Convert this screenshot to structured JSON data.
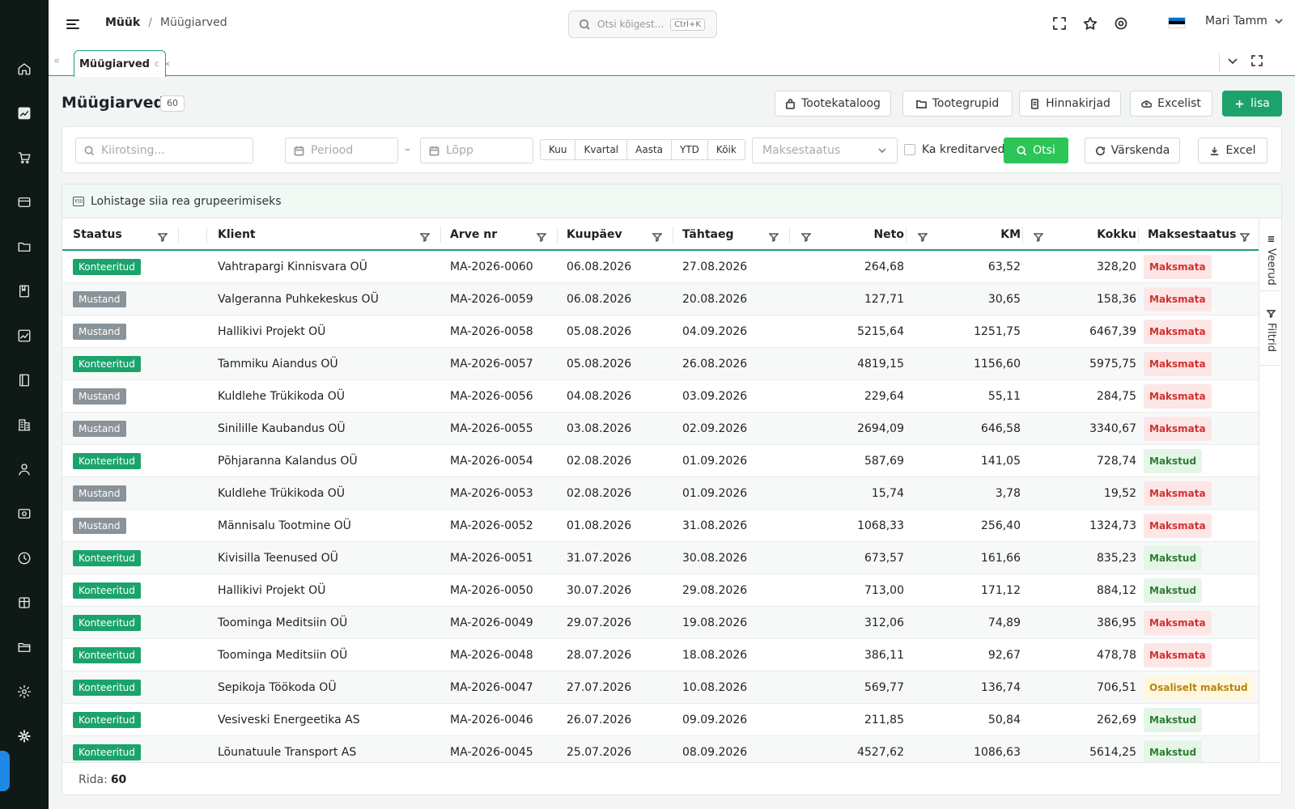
{
  "breadcrumb": {
    "section": "Müük",
    "separator": "/",
    "page": "Müügiarved"
  },
  "search": {
    "placeholder": "Otsi kõigest...",
    "shortcut": "Ctrl+K"
  },
  "user": {
    "name": "Mari Tamm"
  },
  "flag_colors": [
    "#0072ce",
    "#000000",
    "#ffffff"
  ],
  "tab": {
    "label": "Müügiarved",
    "refresh_glyph": "c",
    "close_glyph": "×"
  },
  "page": {
    "title": "Müügiarved",
    "count": "60"
  },
  "actions": {
    "catalog": "Tootekataloog",
    "groups": "Tootegrupid",
    "pricelists": "Hinnakirjad",
    "excel_import": "Excelist",
    "add": "lisa"
  },
  "filters": {
    "quick_search_placeholder": "Kiirotsing...",
    "period_placeholder": "Periood",
    "dash": "–",
    "end_placeholder": "Lõpp",
    "ranges": [
      "Kuu",
      "Kvartal",
      "Aasta",
      "YTD",
      "Kõik"
    ],
    "payment_status_placeholder": "Maksestaatus",
    "credit_label": "Ka kreditarved",
    "search_button": "Otsi",
    "refresh_button": "Värskenda",
    "excel_button": "Excel"
  },
  "grid": {
    "group_hint": "Lohistage siia rea grupeerimiseks",
    "group_icon_text": "YIII",
    "columns": {
      "status": "Staatus",
      "client": "Klient",
      "invoice": "Arve nr",
      "date": "Kuupäev",
      "due": "Tähtaeg",
      "net": "Neto",
      "vat": "KM",
      "total": "Kokku",
      "payment": "Maksestaatus"
    },
    "side_tabs": {
      "columns": "Veerud",
      "filters": "Filtrid"
    },
    "rows": [
      {
        "status": "Konteeritud",
        "client": "Vahtrapargi Kinnisvara OÜ",
        "invoice": "MA-2026-0060",
        "date": "06.08.2026",
        "due": "27.08.2026",
        "net": "264,68",
        "vat": "63,52",
        "total": "328,20",
        "payment": "Maksmata"
      },
      {
        "status": "Mustand",
        "client": "Valgeranna Puhkekeskus OÜ",
        "invoice": "MA-2026-0059",
        "date": "06.08.2026",
        "due": "20.08.2026",
        "net": "127,71",
        "vat": "30,65",
        "total": "158,36",
        "payment": "Maksmata"
      },
      {
        "status": "Mustand",
        "client": "Hallikivi Projekt OÜ",
        "invoice": "MA-2026-0058",
        "date": "05.08.2026",
        "due": "04.09.2026",
        "net": "5215,64",
        "vat": "1251,75",
        "total": "6467,39",
        "payment": "Maksmata"
      },
      {
        "status": "Konteeritud",
        "client": "Tammiku Aiandus OÜ",
        "invoice": "MA-2026-0057",
        "date": "05.08.2026",
        "due": "26.08.2026",
        "net": "4819,15",
        "vat": "1156,60",
        "total": "5975,75",
        "payment": "Maksmata"
      },
      {
        "status": "Mustand",
        "client": "Kuldlehe Trükikoda OÜ",
        "invoice": "MA-2026-0056",
        "date": "04.08.2026",
        "due": "03.09.2026",
        "net": "229,64",
        "vat": "55,11",
        "total": "284,75",
        "payment": "Maksmata"
      },
      {
        "status": "Mustand",
        "client": "Sinilille Kaubandus OÜ",
        "invoice": "MA-2026-0055",
        "date": "03.08.2026",
        "due": "02.09.2026",
        "net": "2694,09",
        "vat": "646,58",
        "total": "3340,67",
        "payment": "Maksmata"
      },
      {
        "status": "Konteeritud",
        "client": "Põhjaranna Kalandus OÜ",
        "invoice": "MA-2026-0054",
        "date": "02.08.2026",
        "due": "01.09.2026",
        "net": "587,69",
        "vat": "141,05",
        "total": "728,74",
        "payment": "Makstud"
      },
      {
        "status": "Mustand",
        "client": "Kuldlehe Trükikoda OÜ",
        "invoice": "MA-2026-0053",
        "date": "02.08.2026",
        "due": "01.09.2026",
        "net": "15,74",
        "vat": "3,78",
        "total": "19,52",
        "payment": "Maksmata"
      },
      {
        "status": "Mustand",
        "client": "Männisalu Tootmine OÜ",
        "invoice": "MA-2026-0052",
        "date": "01.08.2026",
        "due": "31.08.2026",
        "net": "1068,33",
        "vat": "256,40",
        "total": "1324,73",
        "payment": "Maksmata"
      },
      {
        "status": "Konteeritud",
        "client": "Kivisilla Teenused OÜ",
        "invoice": "MA-2026-0051",
        "date": "31.07.2026",
        "due": "30.08.2026",
        "net": "673,57",
        "vat": "161,66",
        "total": "835,23",
        "payment": "Makstud"
      },
      {
        "status": "Konteeritud",
        "client": "Hallikivi Projekt OÜ",
        "invoice": "MA-2026-0050",
        "date": "30.07.2026",
        "due": "29.08.2026",
        "net": "713,00",
        "vat": "171,12",
        "total": "884,12",
        "payment": "Makstud"
      },
      {
        "status": "Konteeritud",
        "client": "Toominga Meditsiin OÜ",
        "invoice": "MA-2026-0049",
        "date": "29.07.2026",
        "due": "19.08.2026",
        "net": "312,06",
        "vat": "74,89",
        "total": "386,95",
        "payment": "Maksmata"
      },
      {
        "status": "Konteeritud",
        "client": "Toominga Meditsiin OÜ",
        "invoice": "MA-2026-0048",
        "date": "28.07.2026",
        "due": "18.08.2026",
        "net": "386,11",
        "vat": "92,67",
        "total": "478,78",
        "payment": "Maksmata"
      },
      {
        "status": "Konteeritud",
        "client": "Sepikoja Töökoda OÜ",
        "invoice": "MA-2026-0047",
        "date": "27.07.2026",
        "due": "10.08.2026",
        "net": "569,77",
        "vat": "136,74",
        "total": "706,51",
        "payment": "Osaliselt makstud"
      },
      {
        "status": "Konteeritud",
        "client": "Vesiveski Energeetika AS",
        "invoice": "MA-2026-0046",
        "date": "26.07.2026",
        "due": "09.09.2026",
        "net": "211,85",
        "vat": "50,84",
        "total": "262,69",
        "payment": "Makstud"
      },
      {
        "status": "Konteeritud",
        "client": "Lõunatuule Transport AS",
        "invoice": "MA-2026-0045",
        "date": "25.07.2026",
        "due": "08.09.2026",
        "net": "4527,62",
        "vat": "1086,63",
        "total": "5614,25",
        "payment": "Makstud"
      }
    ]
  },
  "footer": {
    "label": "Rida:",
    "count": "60"
  },
  "status_colors": {
    "Konteeritud": "#1ca36c",
    "Mustand": "#8a9399"
  },
  "sidebar_icons": [
    "home-icon",
    "chart-icon",
    "cart-icon",
    "card-icon",
    "folder-icon",
    "book-icon",
    "trend-icon",
    "ledger-icon",
    "building-icon",
    "user-icon",
    "wallet-icon",
    "clock-icon",
    "package-icon",
    "folder-open-icon",
    "gear-icon",
    "gear-bold-icon"
  ]
}
